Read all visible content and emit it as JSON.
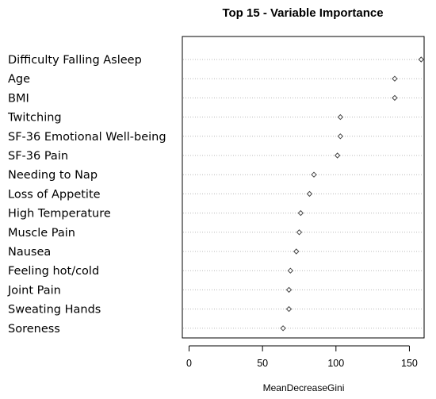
{
  "chart_data": {
    "type": "scatter",
    "title": "Top 15 - Variable Importance",
    "xlabel": "MeanDecreaseGini",
    "ylabel": "",
    "xlim": [
      -3,
      163
    ],
    "xticks": [
      0,
      50,
      100,
      150
    ],
    "grid": "dotted horizontal lines",
    "categories": [
      "Difficulty Falling Asleep",
      "Age",
      "BMI",
      "Twitching",
      "SF-36 Emotional Well-being",
      "SF-36 Pain",
      "Needing to Nap",
      "Loss of Appetite",
      "High Temperature",
      "Muscle Pain",
      "Nausea",
      "Feeling hot/cold",
      "Joint Pain",
      "Sweating Hands",
      "Soreness"
    ],
    "values": [
      158,
      140,
      140,
      103,
      103,
      101,
      85,
      82,
      76,
      75,
      73,
      69,
      68,
      68,
      64
    ]
  }
}
